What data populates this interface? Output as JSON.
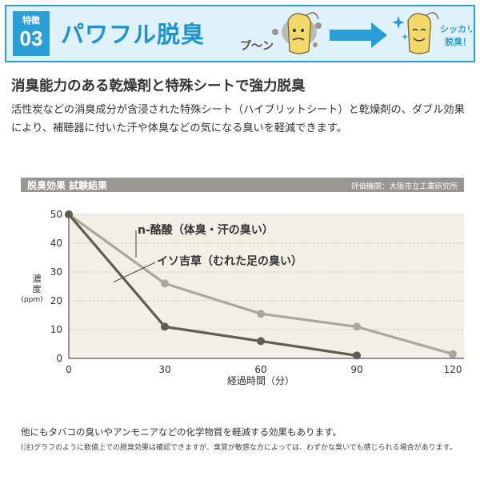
{
  "banner": {
    "feature_label": "特徴",
    "feature_number": "03",
    "title": "パワフル脱臭",
    "sound_text": "プ〜ン",
    "result_text_line1": "シッカリ",
    "result_text_line2": "脱臭！",
    "colors": {
      "accent": "#2a9fd6",
      "background": "#dff1fa"
    }
  },
  "intro": {
    "heading": "消臭能力のある乾燥剤と特殊シートで強力脱臭",
    "body": "活性炭などの消臭成分が含浸された特殊シート（ハイブリットシート）と乾燥剤の、ダブル効果により、補聴器に付いた汗や体臭などの気になる臭いを軽減できます。"
  },
  "chart_section": {
    "header_title": "脱臭効果 試験結果",
    "header_source": "評価機関：大阪市立工業研究所"
  },
  "chart_data": {
    "type": "line",
    "xlabel": "経過時間（分）",
    "ylabel_line1": "濃",
    "ylabel_line2": "度",
    "ylabel_unit": "(ppm)",
    "xlim": [
      0,
      120
    ],
    "ylim": [
      0,
      50
    ],
    "x_ticks": [
      "0",
      "30",
      "60",
      "90",
      "120"
    ],
    "y_ticks": [
      "0",
      "10",
      "20",
      "30",
      "40",
      "50"
    ],
    "grid": true,
    "series": [
      {
        "name": "n-酪酸（体臭・汗の臭い）",
        "color": "#a9a89c",
        "x": [
          0,
          30,
          60,
          90,
          120
        ],
        "y": [
          50,
          26,
          15.5,
          11,
          1.5
        ]
      },
      {
        "name": "イソ吉草（むれた足の臭い）",
        "color": "#605d4f",
        "x": [
          0,
          30,
          60,
          90
        ],
        "y": [
          50,
          11,
          6,
          1
        ]
      }
    ]
  },
  "notes": {
    "line1": "他にもタバコの臭いやアンモニアなどの化学物質を軽減する効果もあります。",
    "line2": "(注)グラフのように数値上での脱臭効果は確認できますが、臭覚が敏感な方によっては、わずかな臭いでも感じられる場合があります。"
  }
}
